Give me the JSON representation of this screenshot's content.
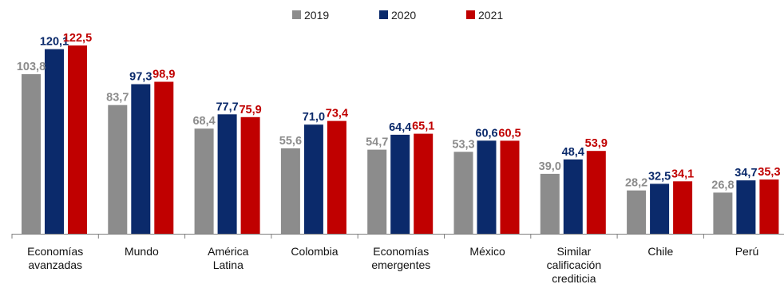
{
  "chart_data": {
    "type": "bar",
    "categories": [
      [
        "Economías",
        "avanzadas"
      ],
      [
        "Mundo"
      ],
      [
        "América",
        "Latina"
      ],
      [
        "Colombia"
      ],
      [
        "Economías",
        "emergentes"
      ],
      [
        "México"
      ],
      [
        "Similar",
        "calificación",
        "crediticia"
      ],
      [
        "Chile"
      ],
      [
        "Perú"
      ]
    ],
    "series": [
      {
        "name": "2019",
        "color": "#8c8c8c",
        "label_color": "#8c8c8c",
        "values": [
          103.8,
          83.7,
          68.4,
          55.6,
          54.7,
          53.3,
          39.0,
          28.2,
          26.8
        ],
        "labels": [
          "103,8",
          "83,7",
          "68,4",
          "55,6",
          "54,7",
          "53,3",
          "39,0",
          "28,2",
          "26,8"
        ]
      },
      {
        "name": "2020",
        "color": "#0b2a6b",
        "label_color": "#0b2a6b",
        "values": [
          120.1,
          97.3,
          77.7,
          71.0,
          64.4,
          60.6,
          48.4,
          32.5,
          34.7
        ],
        "labels": [
          "120,1",
          "97,3",
          "77,7",
          "71,0",
          "64,4",
          "60,6",
          "48,4",
          "32,5",
          "34,7"
        ]
      },
      {
        "name": "2021",
        "color": "#c00000",
        "label_color": "#c00000",
        "values": [
          122.5,
          98.9,
          75.9,
          73.4,
          65.1,
          60.5,
          53.9,
          34.1,
          35.3
        ],
        "labels": [
          "122,5",
          "98,9",
          "75,9",
          "73,4",
          "65,1",
          "60,5",
          "53,9",
          "34,1",
          "35,3"
        ]
      }
    ],
    "ylim": [
      0,
      122.5
    ],
    "grid": false,
    "legend_position": "top-center"
  }
}
